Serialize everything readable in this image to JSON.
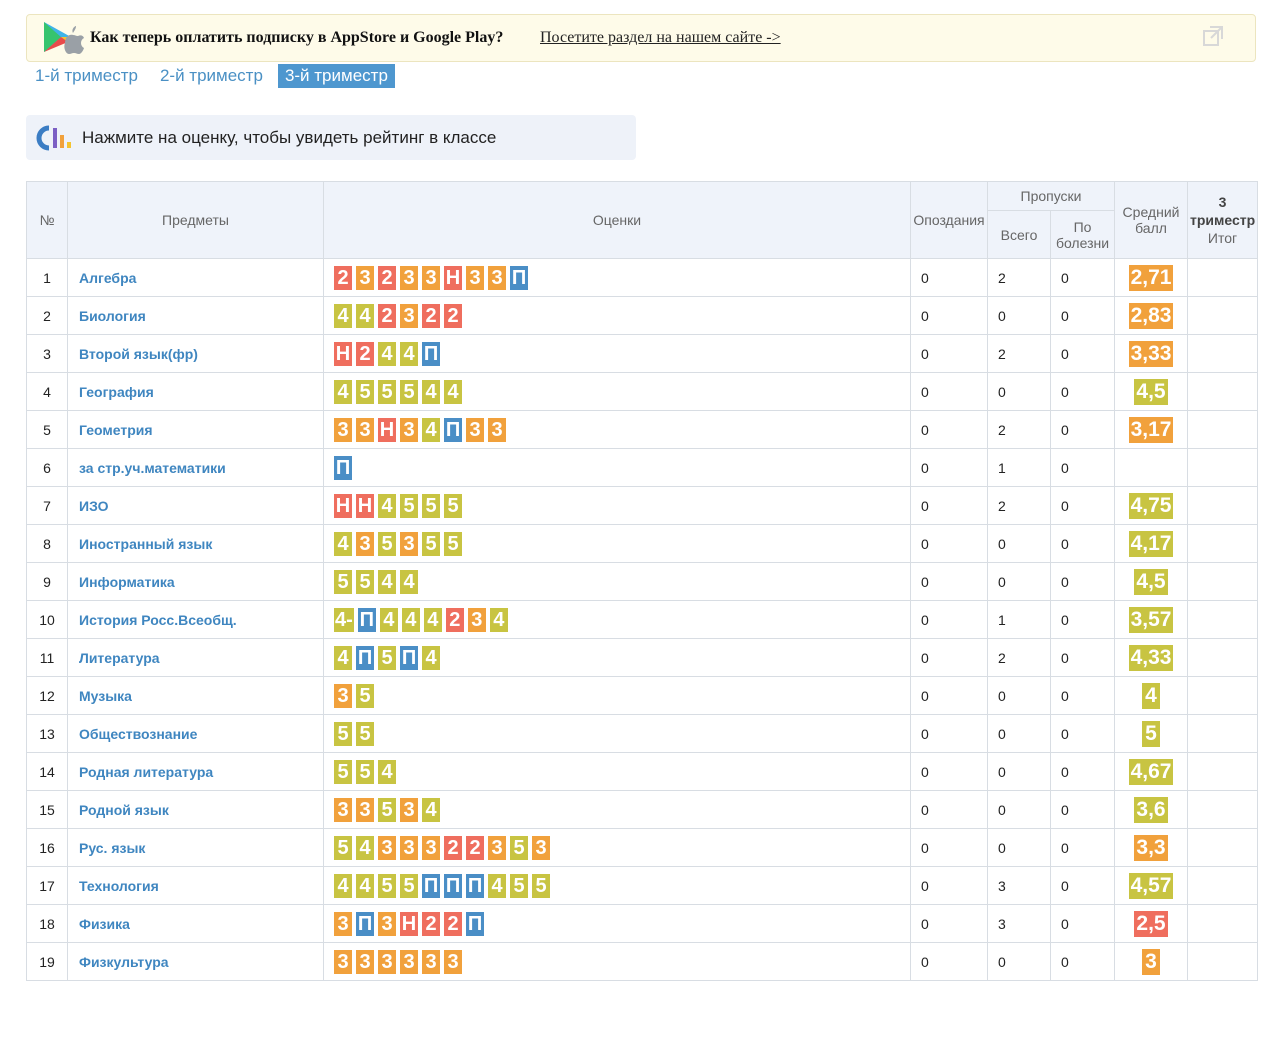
{
  "banner": {
    "text": "Как теперь оплатить подписку в AppStore и Google Play?",
    "link": "Посетите раздел на нашем сайте ->"
  },
  "tabs": [
    {
      "label": "1-й триместр",
      "active": false
    },
    {
      "label": "2-й триместр",
      "active": false
    },
    {
      "label": "3-й триместр",
      "active": true
    }
  ],
  "info": {
    "text": "Нажмите на оценку, чтобы увидеть рейтинг в классе"
  },
  "table": {
    "headers": {
      "num": "№",
      "subject": "Предметы",
      "marks": "Оценки",
      "late": "Опоздания",
      "absences": "Пропуски",
      "abs_total": "Всего",
      "abs_sick": "По болезни",
      "avg": "Средний балл",
      "final_1": "3 триместр",
      "final_2": "Итог"
    },
    "rows": [
      {
        "n": "1",
        "subject": "Алгебра",
        "marks": [
          "2",
          "3",
          "2",
          "3",
          "3",
          "Н",
          "3",
          "3",
          "П"
        ],
        "late": "0",
        "total": "2",
        "sick": "0",
        "avg": "2,71",
        "avg_color": "orange",
        "final": ""
      },
      {
        "n": "2",
        "subject": "Биология",
        "marks": [
          "4",
          "4",
          "2",
          "3",
          "2",
          "2"
        ],
        "late": "0",
        "total": "0",
        "sick": "0",
        "avg": "2,83",
        "avg_color": "orange",
        "final": ""
      },
      {
        "n": "3",
        "subject": "Второй язык(фр)",
        "marks": [
          "Н",
          "2",
          "4",
          "4",
          "П"
        ],
        "late": "0",
        "total": "2",
        "sick": "0",
        "avg": "3,33",
        "avg_color": "orange",
        "final": ""
      },
      {
        "n": "4",
        "subject": "География",
        "marks": [
          "4",
          "5",
          "5",
          "5",
          "4",
          "4"
        ],
        "late": "0",
        "total": "0",
        "sick": "0",
        "avg": "4,5",
        "avg_color": "green",
        "final": ""
      },
      {
        "n": "5",
        "subject": "Геометрия",
        "marks": [
          "3",
          "3",
          "Н",
          "3",
          "4",
          "П",
          "3",
          "3"
        ],
        "late": "0",
        "total": "2",
        "sick": "0",
        "avg": "3,17",
        "avg_color": "orange",
        "final": ""
      },
      {
        "n": "6",
        "subject": "за стр.уч.математики",
        "marks": [
          "П"
        ],
        "late": "0",
        "total": "1",
        "sick": "0",
        "avg": "",
        "avg_color": "",
        "final": ""
      },
      {
        "n": "7",
        "subject": "ИЗО",
        "marks": [
          "Н",
          "Н",
          "4",
          "5",
          "5",
          "5"
        ],
        "late": "0",
        "total": "2",
        "sick": "0",
        "avg": "4,75",
        "avg_color": "green",
        "final": ""
      },
      {
        "n": "8",
        "subject": "Иностранный язык",
        "marks": [
          "4",
          "3",
          "5",
          "3",
          "5",
          "5"
        ],
        "late": "0",
        "total": "0",
        "sick": "0",
        "avg": "4,17",
        "avg_color": "green",
        "final": ""
      },
      {
        "n": "9",
        "subject": "Информатика",
        "marks": [
          "5",
          "5",
          "4",
          "4"
        ],
        "late": "0",
        "total": "0",
        "sick": "0",
        "avg": "4,5",
        "avg_color": "green",
        "final": ""
      },
      {
        "n": "10",
        "subject": "История Росс.Всеобщ.",
        "marks": [
          "4-",
          "П",
          "4",
          "4",
          "4",
          "2",
          "3",
          "4"
        ],
        "late": "0",
        "total": "1",
        "sick": "0",
        "avg": "3,57",
        "avg_color": "green",
        "final": ""
      },
      {
        "n": "11",
        "subject": "Литература",
        "marks": [
          "4",
          "П",
          "5",
          "П",
          "4"
        ],
        "late": "0",
        "total": "2",
        "sick": "0",
        "avg": "4,33",
        "avg_color": "green",
        "final": ""
      },
      {
        "n": "12",
        "subject": "Музыка",
        "marks": [
          "3",
          "5"
        ],
        "late": "0",
        "total": "0",
        "sick": "0",
        "avg": "4",
        "avg_color": "green",
        "final": ""
      },
      {
        "n": "13",
        "subject": "Обществознание",
        "marks": [
          "5",
          "5"
        ],
        "late": "0",
        "total": "0",
        "sick": "0",
        "avg": "5",
        "avg_color": "green",
        "final": ""
      },
      {
        "n": "14",
        "subject": "Родная литература",
        "marks": [
          "5",
          "5",
          "4"
        ],
        "late": "0",
        "total": "0",
        "sick": "0",
        "avg": "4,67",
        "avg_color": "green",
        "final": ""
      },
      {
        "n": "15",
        "subject": "Родной язык",
        "marks": [
          "3",
          "3",
          "5",
          "3",
          "4"
        ],
        "late": "0",
        "total": "0",
        "sick": "0",
        "avg": "3,6",
        "avg_color": "green",
        "final": ""
      },
      {
        "n": "16",
        "subject": "Рус. язык",
        "marks": [
          "5",
          "4",
          "3",
          "3",
          "3",
          "2",
          "2",
          "3",
          "5",
          "3"
        ],
        "late": "0",
        "total": "0",
        "sick": "0",
        "avg": "3,3",
        "avg_color": "orange",
        "final": ""
      },
      {
        "n": "17",
        "subject": "Технология",
        "marks": [
          "4",
          "4",
          "5",
          "5",
          "П",
          "П",
          "П",
          "4",
          "5",
          "5"
        ],
        "late": "0",
        "total": "3",
        "sick": "0",
        "avg": "4,57",
        "avg_color": "green",
        "final": ""
      },
      {
        "n": "18",
        "subject": "Физика",
        "marks": [
          "3",
          "П",
          "3",
          "Н",
          "2",
          "2",
          "П"
        ],
        "late": "0",
        "total": "3",
        "sick": "0",
        "avg": "2,5",
        "avg_color": "red",
        "final": ""
      },
      {
        "n": "19",
        "subject": "Физкультура",
        "marks": [
          "3",
          "3",
          "3",
          "3",
          "3",
          "3"
        ],
        "late": "0",
        "total": "0",
        "sick": "0",
        "avg": "3",
        "avg_color": "orange",
        "final": ""
      }
    ]
  }
}
